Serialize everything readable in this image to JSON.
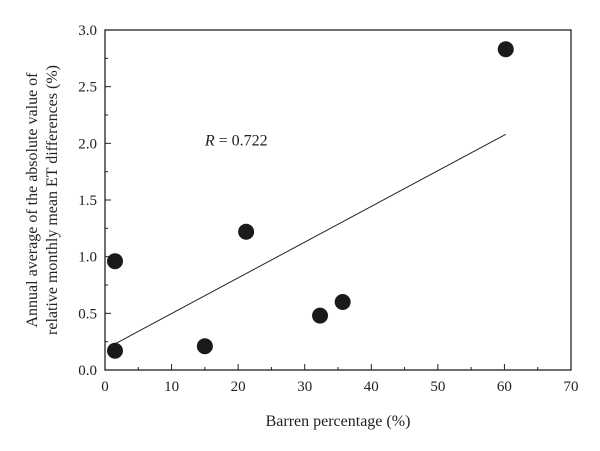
{
  "chart_data": {
    "type": "scatter",
    "xlabel": "Barren percentage (%)",
    "ylabel_lines": [
      "Annual average of the absolute value of",
      "relative monthly mean ET differences (%)"
    ],
    "xlim": [
      0,
      70
    ],
    "ylim": [
      0,
      3.0
    ],
    "x_ticks": [
      0,
      10,
      20,
      30,
      40,
      50,
      60,
      70
    ],
    "x_tick_labels": [
      "0",
      "10",
      "20",
      "30",
      "40",
      "50",
      "60",
      "70"
    ],
    "y_ticks": [
      0,
      0.5,
      1.0,
      1.5,
      2.0,
      2.5,
      3.0
    ],
    "y_tick_labels": [
      "0.0",
      "0.5",
      "1.0",
      "1.5",
      "2.0",
      "2.5",
      "3.0"
    ],
    "grid": false,
    "points": [
      {
        "x": 1.5,
        "y": 0.17
      },
      {
        "x": 1.5,
        "y": 0.96
      },
      {
        "x": 15.0,
        "y": 0.21
      },
      {
        "x": 21.2,
        "y": 1.22
      },
      {
        "x": 32.3,
        "y": 0.48
      },
      {
        "x": 35.7,
        "y": 0.6
      },
      {
        "x": 60.2,
        "y": 2.83
      }
    ],
    "fit_line": {
      "x": [
        1.5,
        60.2
      ],
      "y": [
        0.23,
        2.08
      ]
    },
    "annotation": {
      "r_symbol": "R",
      "r_text": " = 0.722",
      "x": 15,
      "y": 1.98
    }
  }
}
